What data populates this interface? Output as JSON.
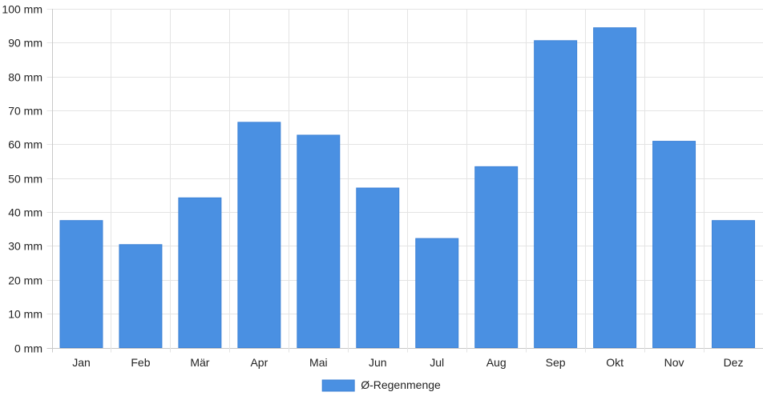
{
  "chart_data": {
    "type": "bar",
    "categories": [
      "Jan",
      "Feb",
      "Mär",
      "Apr",
      "Mai",
      "Jun",
      "Jul",
      "Aug",
      "Sep",
      "Okt",
      "Nov",
      "Dez"
    ],
    "series": [
      {
        "name": "Ø-Regenmenge",
        "values": [
          37.5,
          30.4,
          44.2,
          66.5,
          62.7,
          47.1,
          32.2,
          53.4,
          90.6,
          94.4,
          60.9,
          37.5
        ],
        "color": "#4a90e2"
      }
    ],
    "y_unit": "mm",
    "ylim": [
      0,
      100
    ],
    "y_ticks": [
      0,
      10,
      20,
      30,
      40,
      50,
      60,
      70,
      80,
      90,
      100
    ],
    "grid": true,
    "legend_position": "bottom-center"
  }
}
